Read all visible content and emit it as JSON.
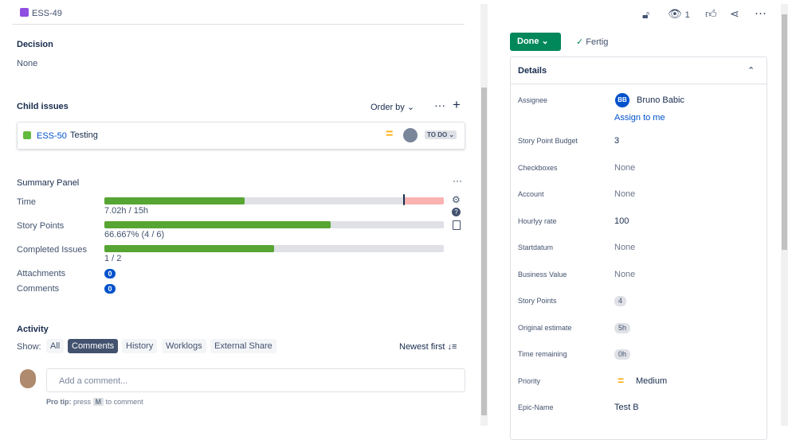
{
  "header": {
    "issue_key": "ESS-49"
  },
  "decision": {
    "label": "Decision",
    "value": "None"
  },
  "child_issues": {
    "title": "Child issues",
    "order_by": "Order by",
    "items": [
      {
        "key": "ESS-50",
        "summary": "Testing",
        "status": "TO DO"
      }
    ]
  },
  "summary_panel": {
    "title": "Summary Panel",
    "progress": [
      {
        "label": "Time",
        "value": "7.02h / 15h"
      },
      {
        "label": "Story Points",
        "value": "66.667% (4 / 6)"
      },
      {
        "label": "Completed Issues",
        "value": "1 / 2"
      }
    ],
    "counts": [
      {
        "label": "Attachments",
        "count": 0
      },
      {
        "label": "Comments",
        "count": 0
      }
    ]
  },
  "activity": {
    "title": "Activity",
    "show": "Show:",
    "filters": [
      "All",
      "Comments",
      "History",
      "Worklogs",
      "External Share"
    ],
    "sort": "Newest first",
    "comment_placeholder": "Add a comment...",
    "pro_tip": "Pro tip:",
    "pro_tip_text": "press",
    "pro_tip_key": "M",
    "pro_tip_end": "to comment"
  },
  "toolbar": {
    "watchers": 1
  },
  "status": {
    "button": "Done",
    "resolution": "Fertig"
  },
  "details": {
    "title": "Details",
    "assignee": {
      "label": "Assignee",
      "initials": "BB",
      "name": "Bruno Babic",
      "assign_to_me": "Assign to me"
    },
    "fields": [
      {
        "label": "Story Point Budget",
        "value": 3
      },
      {
        "label": "Checkboxes",
        "value": "None"
      },
      {
        "label": "Account",
        "value": "None"
      },
      {
        "label": "Hourlyy rate",
        "value": 100
      },
      {
        "label": "Startdatum",
        "value": "None"
      },
      {
        "label": "Business Value",
        "value": "None"
      },
      {
        "label": "Story Points",
        "value": 4
      },
      {
        "label": "Original estimate",
        "value": "5h"
      },
      {
        "label": "Time remaining",
        "value": "0h"
      },
      {
        "label": "Priority",
        "value": "Medium"
      },
      {
        "label": "Epic-Name",
        "value": "Test B"
      }
    ]
  }
}
